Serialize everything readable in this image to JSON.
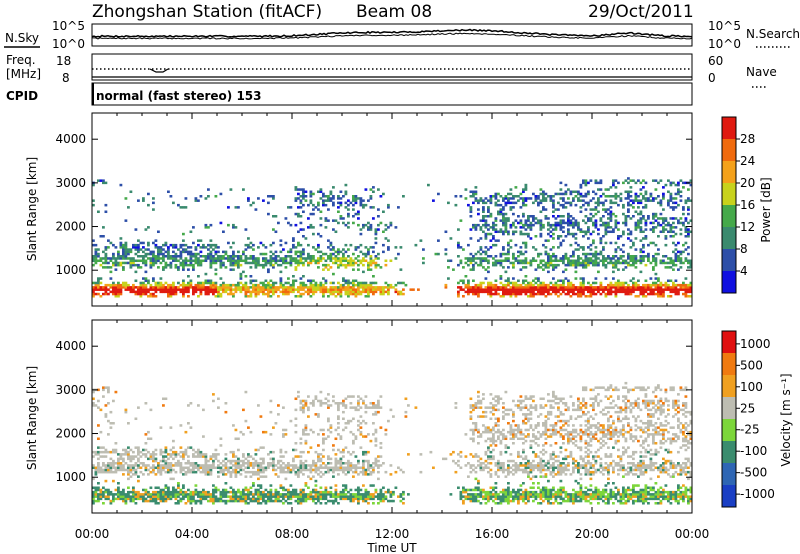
{
  "header": {
    "station": "Zhongshan Station (fitACF)",
    "beam": "Beam 08",
    "date": "29/Oct/2011"
  },
  "top_panels": {
    "nsky_label": "N.Sky",
    "nsearch_label": "N.Search",
    "nsky_ticks": [
      "10^5",
      "10^0"
    ],
    "nsearch_ticks": [
      "10^5",
      "10^0"
    ],
    "freq_label": "Freq.",
    "freq_unit": "[MHz]",
    "freq_ticks": [
      "18",
      "8"
    ],
    "nave_label": "Nave",
    "nave_ticks": [
      "60",
      "0"
    ],
    "cpid_label": "CPID",
    "cpid_text": "normal (fast stereo) 153"
  },
  "chart_data": [
    {
      "type": "heatmap",
      "panel": "power",
      "ylabel": "Slant Range [km]",
      "xlabel": "Time UT",
      "y_ticks": [
        1000,
        2000,
        3000,
        4000
      ],
      "ylim": [
        180,
        4600
      ],
      "x_ticks": [
        "00:00",
        "04:00",
        "08:00",
        "12:00",
        "16:00",
        "20:00",
        "00:00"
      ],
      "xlim_hours": [
        0,
        24
      ],
      "colorbar": {
        "label": "Power [dB]",
        "ticks": [
          "4",
          "8",
          "12",
          "16",
          "20",
          "24",
          "28"
        ],
        "colors": [
          "#1010e0",
          "#2d4fa8",
          "#3a8a6e",
          "#45a94a",
          "#c8d21c",
          "#f4a11a",
          "#f06a0d",
          "#e01a10"
        ]
      }
    },
    {
      "type": "heatmap",
      "panel": "velocity",
      "ylabel": "Slant Range [km]",
      "xlabel": "Time UT",
      "y_ticks": [
        1000,
        2000,
        3000,
        4000
      ],
      "ylim": [
        180,
        4600
      ],
      "x_ticks": [
        "00:00",
        "04:00",
        "08:00",
        "12:00",
        "16:00",
        "20:00",
        "00:00"
      ],
      "xlim_hours": [
        0,
        24
      ],
      "colorbar": {
        "label": "Velocity [m s⁻¹]",
        "ticks": [
          "1000",
          "500",
          "100",
          "25",
          "-25",
          "-100",
          "-500",
          "-1000"
        ],
        "colors": [
          "#1a3fc4",
          "#2e66b4",
          "#3a8c6e",
          "#7cd63a",
          "#bdbdb2",
          "#f0a020",
          "#f07a10",
          "#e01010"
        ]
      }
    }
  ]
}
